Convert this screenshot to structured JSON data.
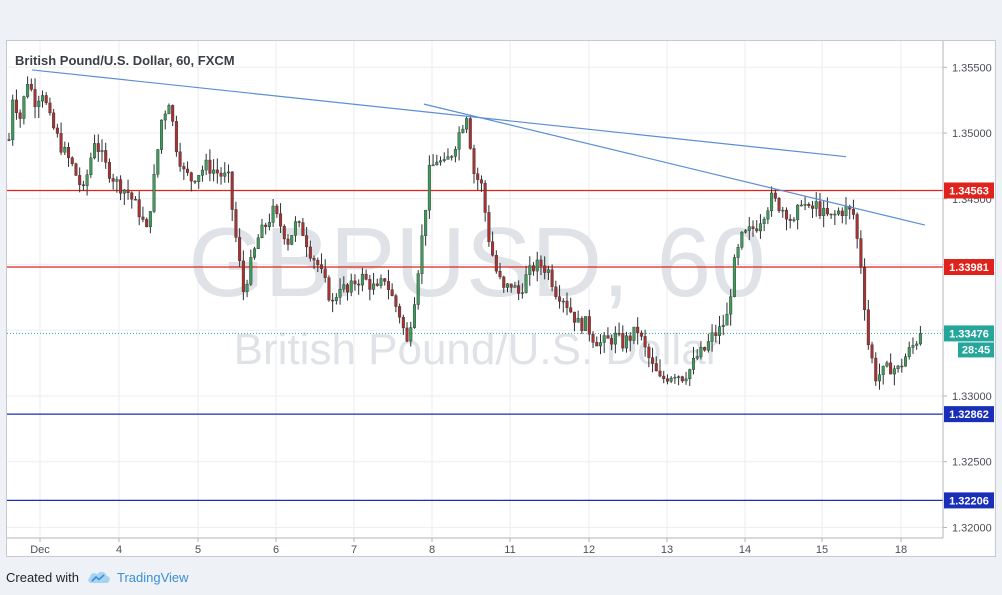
{
  "chart_data": {
    "type": "candlestick",
    "title": "British Pound/U.S. Dollar, 60, FXCM",
    "watermark": {
      "symbol": "GBPUSD, 60",
      "name": "British Pound/U.S. Dollar"
    },
    "x_ticks": [
      "Dec",
      "4",
      "5",
      "6",
      "7",
      "8",
      "11",
      "12",
      "13",
      "14",
      "15",
      "18"
    ],
    "y_ticks": [
      "1.35500",
      "1.35000",
      "1.34500",
      "1.34000",
      "1.33500",
      "1.33000",
      "1.32500",
      "1.32000"
    ],
    "ylim": [
      1.3192,
      1.357
    ],
    "grid": true,
    "current_price": {
      "value": 1.33476,
      "label": "1.33476",
      "countdown": "28:45",
      "color": "#26a69a"
    },
    "horizontal_levels": [
      {
        "value": 1.34563,
        "label": "1.34563",
        "color": "#e0221c"
      },
      {
        "value": 1.33981,
        "label": "1.33981",
        "color": "#e0221c"
      },
      {
        "value": 1.32862,
        "label": "1.32862",
        "color": "#1a2fb8"
      },
      {
        "value": 1.32206,
        "label": "1.32206",
        "color": "#1a2fb8"
      }
    ],
    "trendlines": [
      {
        "from": {
          "day": "Dec",
          "price": 1.3548
        },
        "to": {
          "day": "15",
          "price": 1.3482
        },
        "color": "#5b8fd6"
      },
      {
        "from": {
          "day": "8",
          "price": 1.3522
        },
        "to": {
          "day": "18",
          "price": 1.343
        },
        "color": "#5b8fd6"
      }
    ],
    "bull_color": "#3f9b5a",
    "bear_color": "#a83232",
    "anchors": [
      [
        0,
        1.3495
      ],
      [
        1,
        1.3528
      ],
      [
        3,
        1.3512
      ],
      [
        5,
        1.354
      ],
      [
        7,
        1.3525
      ],
      [
        9,
        1.3532
      ],
      [
        11,
        1.351
      ],
      [
        14,
        1.349
      ],
      [
        17,
        1.3475
      ],
      [
        20,
        1.3455
      ],
      [
        23,
        1.3495
      ],
      [
        26,
        1.3475
      ],
      [
        29,
        1.3462
      ],
      [
        32,
        1.3455
      ],
      [
        35,
        1.344
      ],
      [
        37,
        1.3425
      ],
      [
        39,
        1.3465
      ],
      [
        41,
        1.351
      ],
      [
        43,
        1.3525
      ],
      [
        45,
        1.349
      ],
      [
        47,
        1.347
      ],
      [
        49,
        1.3465
      ],
      [
        51,
        1.347
      ],
      [
        53,
        1.3475
      ],
      [
        55,
        1.3472
      ],
      [
        57,
        1.3468
      ],
      [
        59,
        1.3465
      ],
      [
        61,
        1.342
      ],
      [
        63,
        1.338
      ],
      [
        65,
        1.34
      ],
      [
        67,
        1.342
      ],
      [
        69,
        1.343
      ],
      [
        71,
        1.344
      ],
      [
        73,
        1.343
      ],
      [
        75,
        1.3418
      ],
      [
        77,
        1.343
      ],
      [
        79,
        1.3425
      ],
      [
        81,
        1.341
      ],
      [
        83,
        1.34
      ],
      [
        85,
        1.3385
      ],
      [
        87,
        1.337
      ],
      [
        89,
        1.3385
      ],
      [
        91,
        1.3378
      ],
      [
        93,
        1.3387
      ],
      [
        95,
        1.339
      ],
      [
        97,
        1.3385
      ],
      [
        99,
        1.338
      ],
      [
        101,
        1.339
      ],
      [
        103,
        1.3375
      ],
      [
        105,
        1.3362
      ],
      [
        107,
        1.334
      ],
      [
        109,
        1.3375
      ],
      [
        111,
        1.342
      ],
      [
        113,
        1.347
      ],
      [
        115,
        1.348
      ],
      [
        117,
        1.3475
      ],
      [
        119,
        1.3485
      ],
      [
        121,
        1.35
      ],
      [
        123,
        1.3515
      ],
      [
        125,
        1.347
      ],
      [
        127,
        1.346
      ],
      [
        129,
        1.342
      ],
      [
        131,
        1.3395
      ],
      [
        133,
        1.338
      ],
      [
        135,
        1.3385
      ],
      [
        137,
        1.3378
      ],
      [
        139,
        1.339
      ],
      [
        141,
        1.3398
      ],
      [
        143,
        1.34
      ],
      [
        145,
        1.3395
      ],
      [
        147,
        1.338
      ],
      [
        149,
        1.3375
      ],
      [
        151,
        1.3365
      ],
      [
        153,
        1.3355
      ],
      [
        155,
        1.3355
      ],
      [
        157,
        1.3345
      ],
      [
        159,
        1.334
      ],
      [
        161,
        1.3342
      ],
      [
        163,
        1.3345
      ],
      [
        165,
        1.334
      ],
      [
        167,
        1.3345
      ],
      [
        169,
        1.335
      ],
      [
        171,
        1.3335
      ],
      [
        173,
        1.3322
      ],
      [
        175,
        1.3312
      ],
      [
        177,
        1.3315
      ],
      [
        179,
        1.3318
      ],
      [
        181,
        1.3315
      ],
      [
        183,
        1.332
      ],
      [
        185,
        1.333
      ],
      [
        187,
        1.3335
      ],
      [
        189,
        1.3345
      ],
      [
        191,
        1.335
      ],
      [
        193,
        1.336
      ],
      [
        195,
        1.34
      ],
      [
        197,
        1.342
      ],
      [
        199,
        1.3425
      ],
      [
        201,
        1.343
      ],
      [
        203,
        1.344
      ],
      [
        205,
        1.345
      ],
      [
        207,
        1.3445
      ],
      [
        209,
        1.344
      ],
      [
        211,
        1.343
      ],
      [
        213,
        1.345
      ],
      [
        215,
        1.344
      ],
      [
        217,
        1.3445
      ],
      [
        219,
        1.3438
      ],
      [
        221,
        1.3435
      ],
      [
        223,
        1.344
      ],
      [
        225,
        1.3442
      ],
      [
        227,
        1.3438
      ],
      [
        229,
        1.34
      ],
      [
        231,
        1.334
      ],
      [
        233,
        1.3315
      ],
      [
        235,
        1.3318
      ],
      [
        237,
        1.3322
      ],
      [
        239,
        1.332
      ],
      [
        241,
        1.333
      ],
      [
        243,
        1.3338
      ],
      [
        245,
        1.3347
      ]
    ]
  },
  "footer": {
    "created_with": "Created with",
    "brand": "TradingView"
  }
}
